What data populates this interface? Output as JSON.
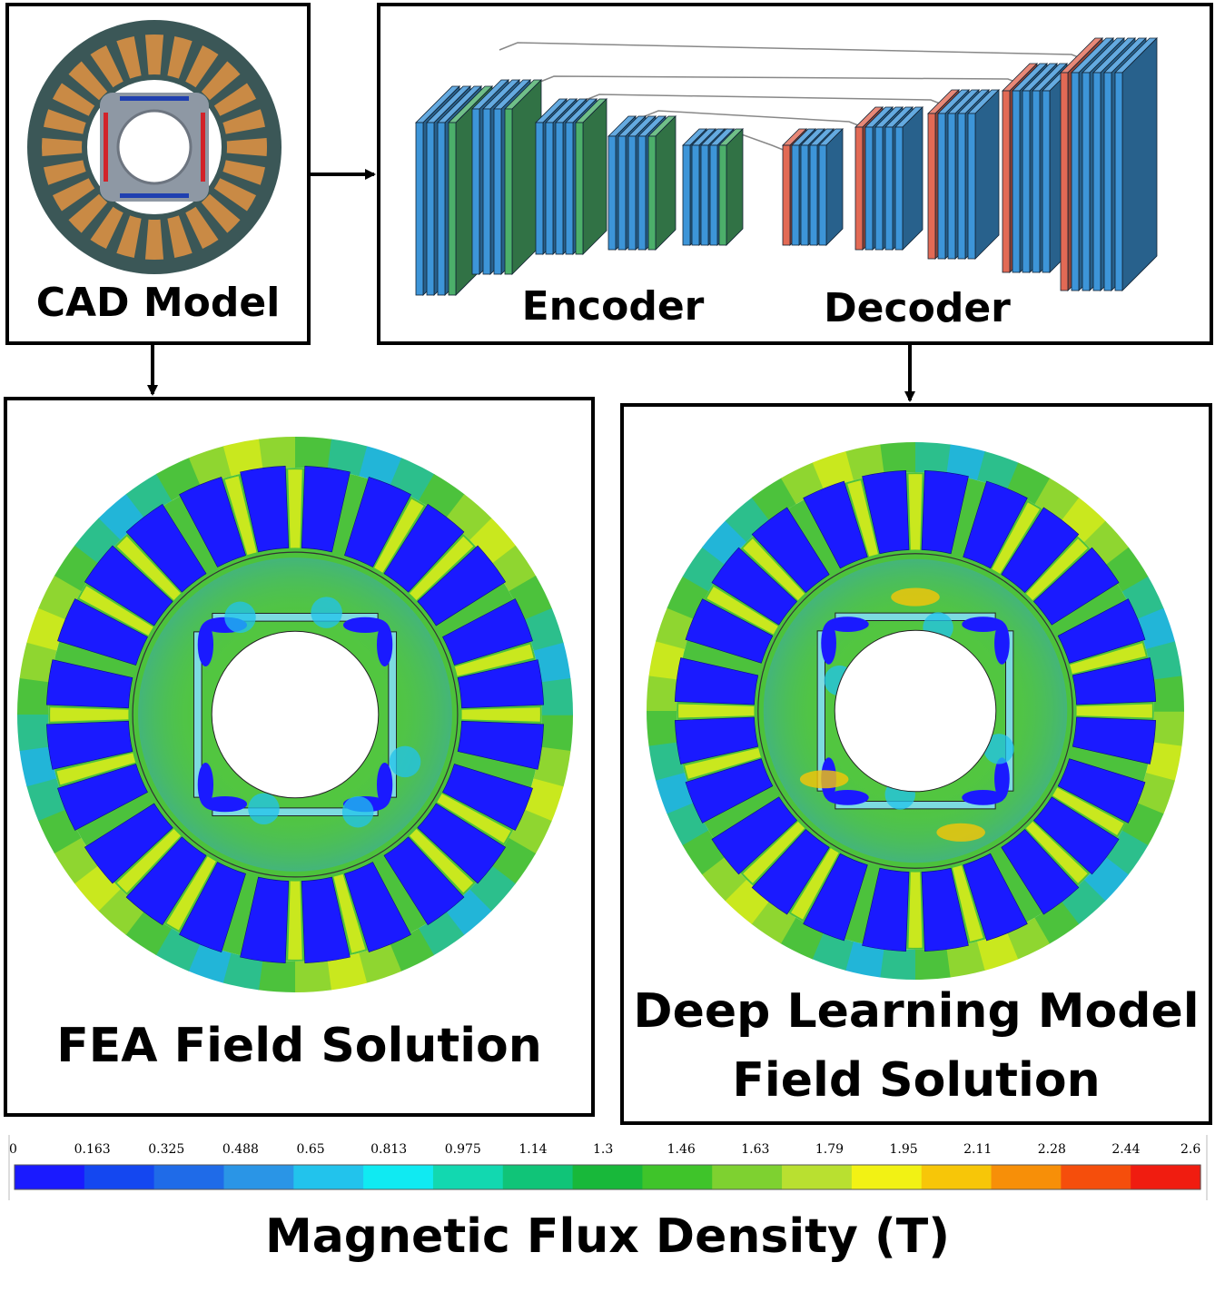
{
  "cad": {
    "label": "CAD Model"
  },
  "network": {
    "encoder_label": "Encoder",
    "decoder_label": "Decoder"
  },
  "fea": {
    "label": "FEA Field Solution"
  },
  "dl": {
    "label_line1": "Deep Learning Model",
    "label_line2": "Field Solution"
  },
  "colorbar": {
    "title": "Magnetic Flux Density (T)",
    "ticks": [
      "0",
      "0.163",
      "0.325",
      "0.488",
      "0.65",
      "0.813",
      "0.975",
      "1.14",
      "1.3",
      "1.46",
      "1.63",
      "1.79",
      "1.95",
      "2.11",
      "2.28",
      "2.44",
      "2.6"
    ],
    "colors": [
      "#1a1aff",
      "#1447f0",
      "#1f6be8",
      "#2a95e6",
      "#22c3ec",
      "#10eaf2",
      "#12d8b0",
      "#10c478",
      "#18b83a",
      "#3fc42a",
      "#7ed130",
      "#b9e030",
      "#f2f214",
      "#f7c608",
      "#f78f08",
      "#f54e0c",
      "#f01c10"
    ]
  },
  "colors": {
    "stator_yoke": "#3b5757",
    "stator_slot": "#c98a45",
    "rotor": "#8e98a4",
    "encoder_blue": "#3d95d8",
    "encoder_green": "#4caf6a",
    "decoder_red": "#e26a55",
    "field_blue": "#1a1aff",
    "field_green": "#4cc23c",
    "field_yellow": "#c9e81e"
  }
}
